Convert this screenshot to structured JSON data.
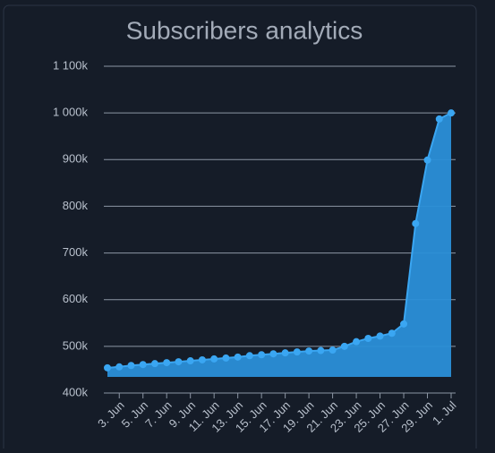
{
  "chart_data": {
    "type": "area",
    "title": "Subscribers analytics",
    "categories": [
      null,
      "3. Jun",
      null,
      "5. Jun",
      null,
      "7. Jun",
      null,
      "9. Jun",
      null,
      "11. Jun",
      null,
      "13. Jun",
      null,
      "15. Jun",
      null,
      "17. Jun",
      null,
      "19. Jun",
      null,
      "21. Jun",
      null,
      "23. Jun",
      null,
      "25. Jun",
      null,
      "27. Jun",
      null,
      "29. Jun",
      null,
      "1. Jul"
    ],
    "values": [
      454,
      456,
      459,
      461,
      463,
      465,
      467,
      469,
      471,
      473,
      475,
      477,
      480,
      482,
      484,
      486,
      488,
      490,
      491,
      492,
      500,
      510,
      517,
      522,
      528,
      548,
      763,
      899,
      987,
      1000
    ],
    "color": "#3aa6f2",
    "ylim": [
      400,
      1100
    ],
    "yticks": [
      {
        "value": 400,
        "label": "400k"
      },
      {
        "value": 500,
        "label": "500k"
      },
      {
        "value": 600,
        "label": "600k"
      },
      {
        "value": 700,
        "label": "700k"
      },
      {
        "value": 800,
        "label": "800k"
      },
      {
        "value": 900,
        "label": "900k"
      },
      {
        "value": 1000,
        "label": "1 000k"
      },
      {
        "value": 1100,
        "label": "1 100k"
      }
    ],
    "grid": true
  }
}
